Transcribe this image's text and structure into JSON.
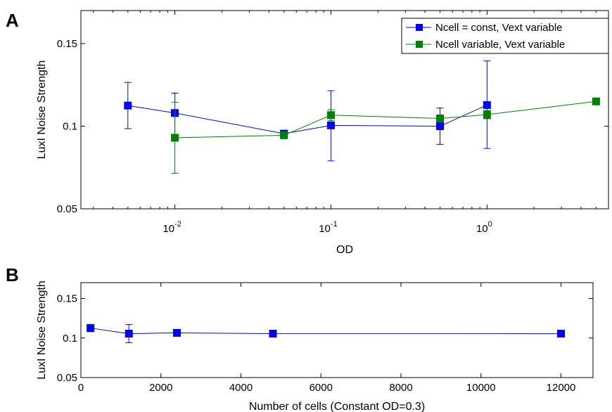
{
  "chart_data": [
    {
      "panel": "A",
      "type": "line",
      "xscale": "log",
      "xlim": [
        0.0025,
        6
      ],
      "ylim": [
        0.05,
        0.17
      ],
      "xlabel": "OD",
      "ylabel": "LuxI Noise Strength",
      "grid": false,
      "legend_position": "top-right",
      "xticks": [
        {
          "value": 0.01,
          "base": "10",
          "exp": "-2"
        },
        {
          "value": 0.1,
          "base": "10",
          "exp": "-1"
        },
        {
          "value": 1,
          "base": "10",
          "exp": "0"
        }
      ],
      "yticks": [
        {
          "value": 0.05,
          "label": "0.05"
        },
        {
          "value": 0.1,
          "label": "0.1"
        },
        {
          "value": 0.15,
          "label": "0.15"
        }
      ],
      "series": [
        {
          "name": "Ncell = const, Vext variable",
          "color": "#0000ff",
          "x": [
            0.005,
            0.01,
            0.05,
            0.1,
            0.5,
            1
          ],
          "y": [
            0.1125,
            0.108,
            0.0955,
            0.1005,
            0.1,
            0.1128
          ],
          "err_low": [
            0.0985,
            0.095,
            0.0945,
            0.079,
            0.089,
            0.0865
          ],
          "err_high": [
            0.1265,
            0.12,
            0.097,
            0.1215,
            0.111,
            0.1395
          ]
        },
        {
          "name": "Ncell variable, Vext variable",
          "color": "#008000",
          "x": [
            0.01,
            0.05,
            0.1,
            0.5,
            1,
            5
          ],
          "y": [
            0.093,
            0.0945,
            0.1067,
            0.1047,
            0.107,
            0.115
          ],
          "err_low": [
            0.0715,
            0.0935,
            0.1035,
            0.1025,
            0.1045,
            0.113
          ],
          "err_high": [
            0.1145,
            0.0955,
            0.11,
            0.1067,
            0.1095,
            0.117
          ]
        }
      ]
    },
    {
      "panel": "B",
      "type": "line",
      "xscale": "linear",
      "xlim": [
        0,
        12800
      ],
      "ylim": [
        0.05,
        0.17
      ],
      "xlabel": "Number of cells (Constant OD=0.3)",
      "ylabel": "LuxI Noise Strength",
      "grid": false,
      "xticks": [
        {
          "value": 0,
          "label": "0"
        },
        {
          "value": 2000,
          "label": "2000"
        },
        {
          "value": 4000,
          "label": "4000"
        },
        {
          "value": 6000,
          "label": "6000"
        },
        {
          "value": 8000,
          "label": "8000"
        },
        {
          "value": 10000,
          "label": "10000"
        },
        {
          "value": 12000,
          "label": "12000"
        }
      ],
      "yticks": [
        {
          "value": 0.05,
          "label": "0.05"
        },
        {
          "value": 0.1,
          "label": "0.1"
        },
        {
          "value": 0.15,
          "label": "0.15"
        }
      ],
      "series": [
        {
          "color": "#0000ff",
          "x": [
            240,
            1200,
            2400,
            4800,
            12000
          ],
          "y": [
            0.1125,
            0.1055,
            0.1065,
            0.1055,
            0.1055
          ],
          "err_low": [
            0.108,
            0.094,
            0.1045,
            0.103,
            0.1035
          ],
          "err_high": [
            0.117,
            0.117,
            0.1085,
            0.108,
            0.1075
          ]
        }
      ]
    }
  ]
}
